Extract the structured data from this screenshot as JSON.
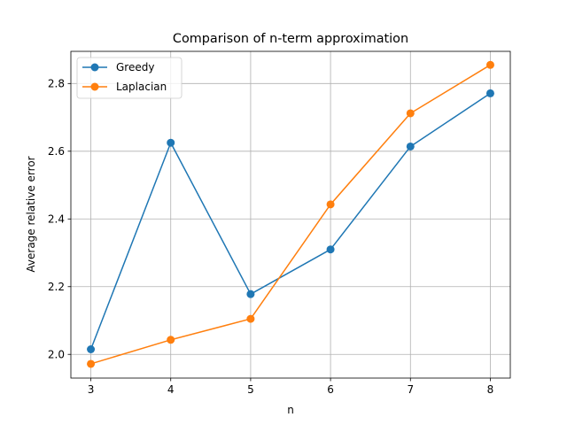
{
  "chart_data": {
    "type": "line",
    "title": "Comparison of n-term approximation",
    "xlabel": "n",
    "ylabel": "Average relative error",
    "x": [
      3,
      4,
      5,
      6,
      7,
      8
    ],
    "xticks": [
      "3",
      "4",
      "5",
      "6",
      "7",
      "8"
    ],
    "yticks": [
      "2.0",
      "2.2",
      "2.4",
      "2.6",
      "2.8"
    ],
    "xlim": [
      2.75,
      8.25
    ],
    "ylim": [
      1.93,
      2.895
    ],
    "grid": true,
    "legend_position": "top-left",
    "series": [
      {
        "name": "Greedy",
        "color": "#1f77b4",
        "values": [
          2.015,
          2.625,
          2.178,
          2.31,
          2.614,
          2.771
        ]
      },
      {
        "name": "Laplacian",
        "color": "#ff7f0e",
        "values": [
          1.972,
          2.043,
          2.105,
          2.443,
          2.712,
          2.855
        ]
      }
    ]
  }
}
